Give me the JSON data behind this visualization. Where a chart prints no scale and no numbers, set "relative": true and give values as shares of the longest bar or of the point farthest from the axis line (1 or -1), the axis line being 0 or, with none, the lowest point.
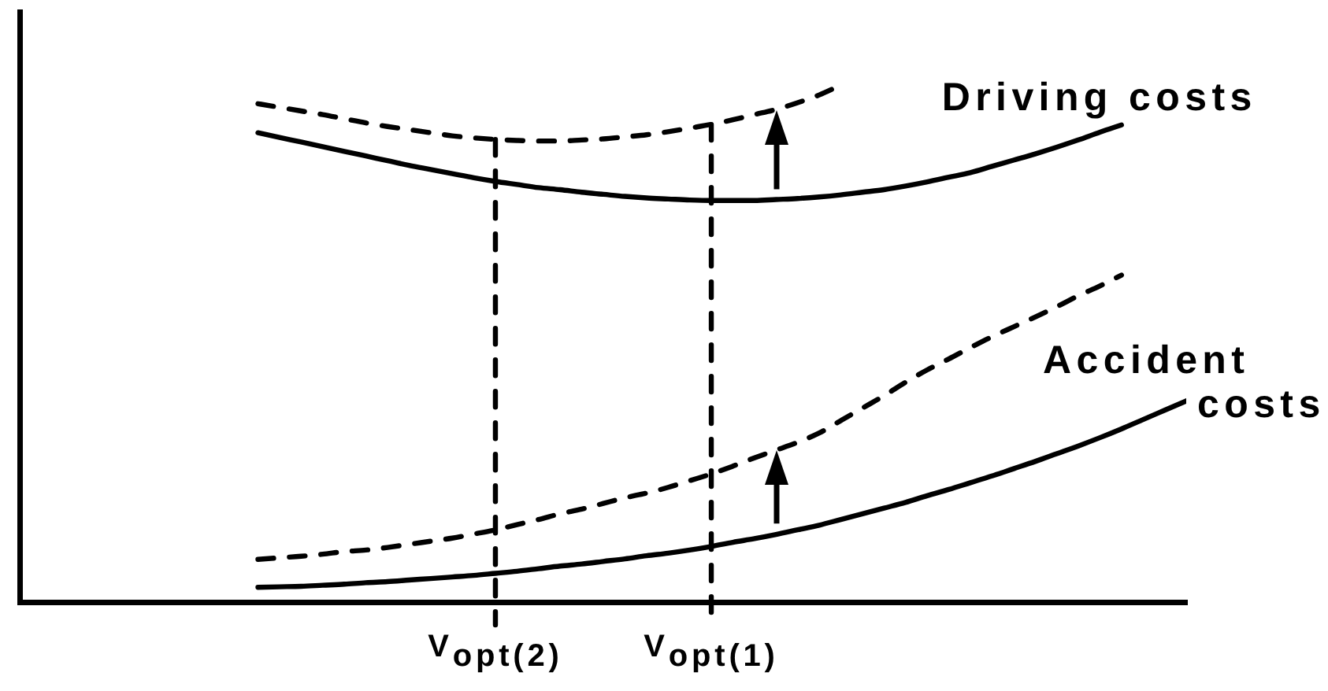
{
  "chart_data": {
    "type": "line",
    "relative": true,
    "tick_labels": "x",
    "grid": false,
    "legend": false,
    "marker": "none",
    "categories": [
      null,
      null,
      null,
      null,
      null,
      null,
      null,
      null,
      null,
      null,
      null,
      null,
      null,
      null,
      null,
      null,
      null,
      null,
      null,
      null,
      null,
      null,
      "V$_{opt(2)}$",
      null,
      null,
      null,
      null,
      null,
      null,
      null,
      null,
      null,
      "V$_{opt(1)}$",
      null,
      null,
      null,
      null,
      null,
      null,
      null,
      null,
      null,
      null,
      null,
      null,
      null,
      null,
      null,
      null,
      null,
      null,
      null,
      null,
      null,
      null
    ],
    "ref_lines": [
      {
        "axis": "x",
        "value": "V$_{opt(2)}$",
        "color": "#000000",
        "line_style": "dashed"
      },
      {
        "axis": "x",
        "value": "V$_{opt(1)}$",
        "color": "#000000",
        "line_style": "dashed"
      }
    ],
    "series": [
      {
        "name": "Driving costs",
        "color": "#000000",
        "line_style": "solid",
        "values": [
          null,
          null,
          null,
          null,
          null,
          null,
          null,
          null,
          null,
          null,
          null,
          0.908,
          0.899,
          0.89,
          0.881,
          0.872,
          0.863,
          0.854,
          0.845,
          0.837,
          0.829,
          0.821,
          0.814,
          0.808,
          0.802,
          0.798,
          0.793,
          0.789,
          0.785,
          0.782,
          0.78,
          0.778,
          0.777,
          0.777,
          0.777,
          0.779,
          0.781,
          0.784,
          0.788,
          0.793,
          0.798,
          0.805,
          0.813,
          0.822,
          0.831,
          0.843,
          0.855,
          0.867,
          0.88,
          0.894,
          0.909,
          0.923,
          null,
          null,
          null
        ]
      },
      {
        "color": "#000000",
        "line_style": "dashed",
        "values": [
          null,
          null,
          null,
          null,
          null,
          null,
          null,
          null,
          null,
          null,
          null,
          0.964,
          0.957,
          0.95,
          0.943,
          0.935,
          0.927,
          0.92,
          0.914,
          0.908,
          0.902,
          0.898,
          0.895,
          0.893,
          0.892,
          0.892,
          0.894,
          0.896,
          0.9,
          0.904,
          0.91,
          0.917,
          0.924,
          0.933,
          0.943,
          0.953,
          0.966,
          0.981,
          1.0,
          null,
          null,
          null,
          null,
          null,
          null,
          null,
          null,
          null,
          null,
          null,
          null,
          null,
          null,
          null,
          null
        ]
      },
      {
        "name": "Accident costs",
        "color": "#000000",
        "line_style": "solid",
        "values": [
          null,
          null,
          null,
          null,
          null,
          null,
          null,
          null,
          null,
          null,
          null,
          0.03,
          0.031,
          0.032,
          0.034,
          0.036,
          0.039,
          0.041,
          0.044,
          0.047,
          0.05,
          0.053,
          0.057,
          0.061,
          0.066,
          0.071,
          0.075,
          0.08,
          0.085,
          0.091,
          0.096,
          0.102,
          0.109,
          0.117,
          0.124,
          0.132,
          0.141,
          0.15,
          0.161,
          0.172,
          0.183,
          0.194,
          0.207,
          0.219,
          0.232,
          0.245,
          0.259,
          0.273,
          0.288,
          0.303,
          0.319,
          0.336,
          0.354,
          0.372,
          0.39
        ]
      },
      {
        "color": "#000000",
        "line_style": "dashed",
        "values": [
          null,
          null,
          null,
          null,
          null,
          null,
          null,
          null,
          null,
          null,
          null,
          0.084,
          0.087,
          0.09,
          0.094,
          0.099,
          0.102,
          0.107,
          0.113,
          0.119,
          0.125,
          0.133,
          0.141,
          0.151,
          0.161,
          0.172,
          0.181,
          0.192,
          0.203,
          0.212,
          0.223,
          0.236,
          0.249,
          0.264,
          0.28,
          0.295,
          0.31,
          0.328,
          0.352,
          0.376,
          0.4,
          0.426,
          0.45,
          0.471,
          0.493,
          0.514,
          0.533,
          0.552,
          0.572,
          0.593,
          0.612,
          0.633,
          null,
          null,
          null
        ]
      }
    ]
  }
}
